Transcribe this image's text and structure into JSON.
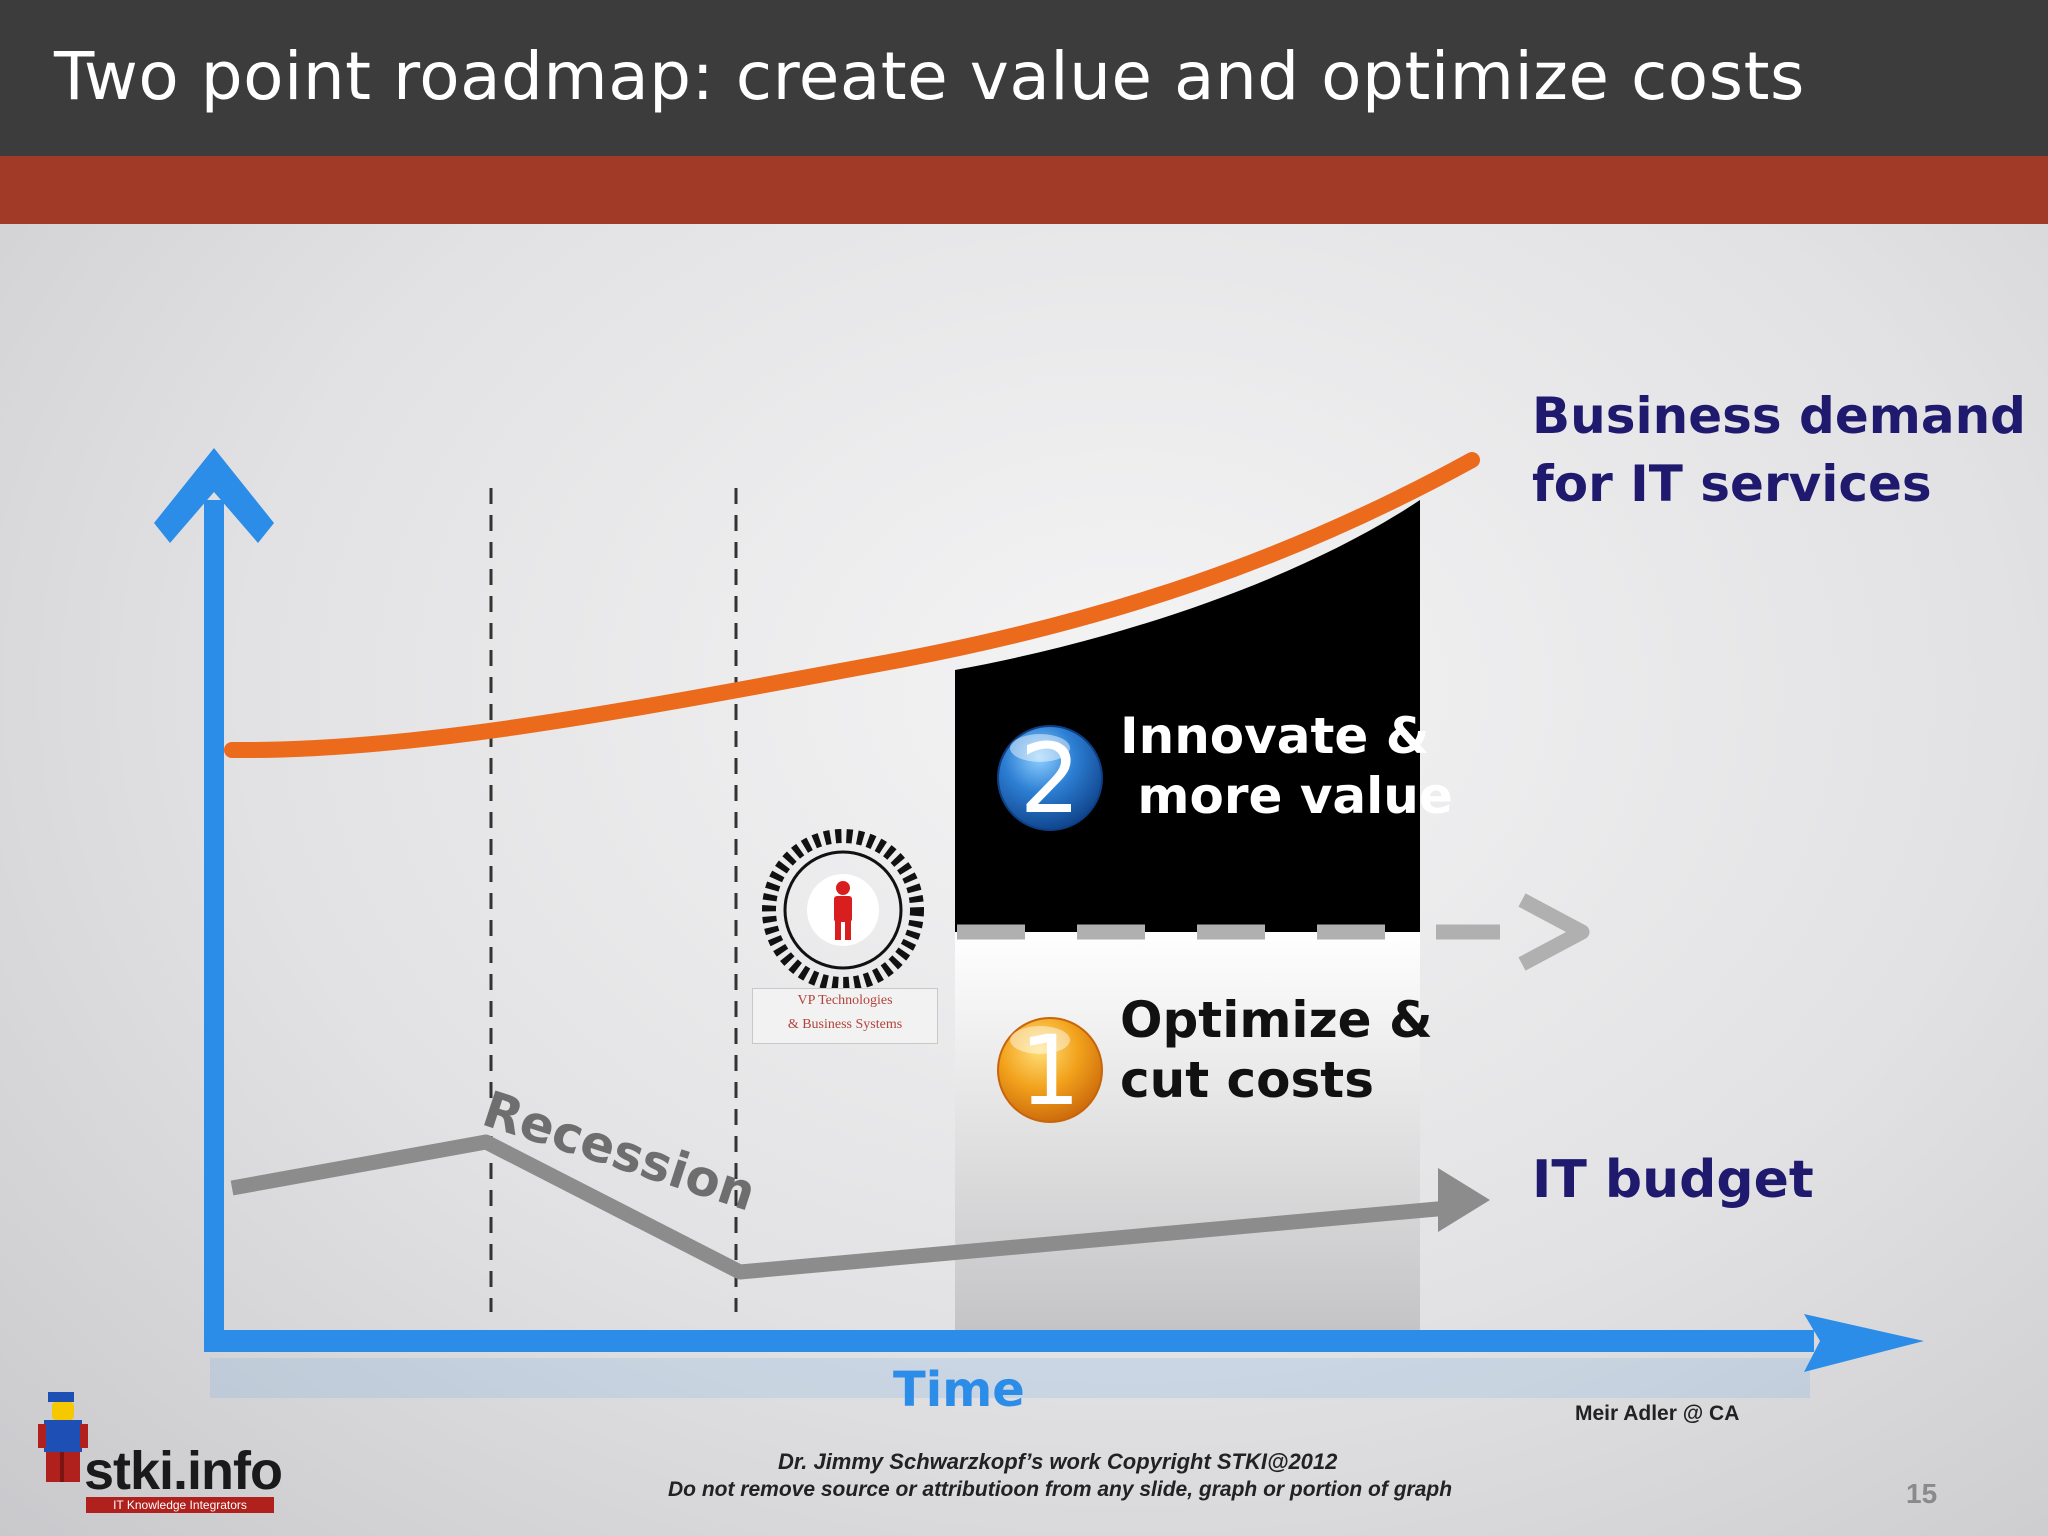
{
  "slide": {
    "title": "Two point roadmap: create value and optimize costs",
    "page_number": "15"
  },
  "diagram": {
    "demand_label_line1": "Business demand",
    "demand_label_line2": "for IT services",
    "budget_label": "IT budget",
    "time_label": "Time",
    "recession_label": "Recession",
    "step2_number": "2",
    "step2_line1": "Innovate &",
    "step2_line2": " more value",
    "step1_number": "1",
    "step1_line1": "Optimize &",
    "step1_line2": "cut costs",
    "vp_label_line1": "VP Technologies",
    "vp_label_line2": "& Business Systems",
    "colors": {
      "axis": "#2b8de8",
      "demand_curve": "#ec6a1c",
      "budget_line": "#8c8c8c",
      "label_navy": "#1f1a6e",
      "badge_blue": "#2d7fd4",
      "badge_orange": "#f2a21c"
    }
  },
  "footer": {
    "credit": "Meir Adler @ CA",
    "copyright": "Dr. Jimmy Schwarzkopf’s work  Copyright STKI@2012",
    "notice": "Do not remove source or attributioon from any slide, graph or portion of graph",
    "logo_text": "stki.info",
    "logo_tagline": "IT Knowledge Integrators"
  }
}
